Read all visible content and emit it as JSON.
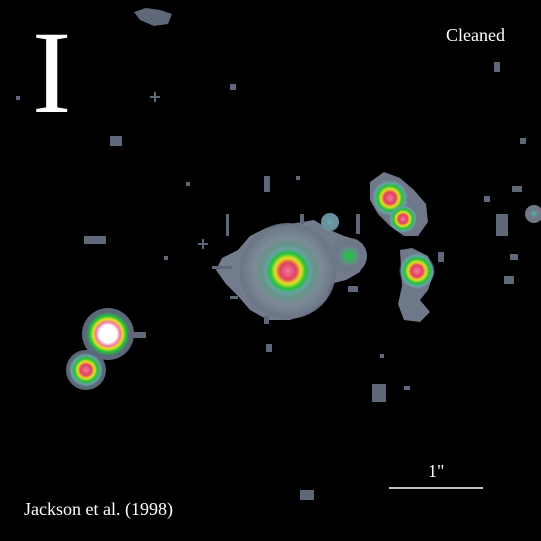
{
  "figure": {
    "band": "I",
    "status": "Cleaned",
    "scale_bar_label": "1\"",
    "credit": "Jackson et al. (1998)"
  },
  "colors": {
    "background": "#000000",
    "noise": "#5f6878",
    "halo": "#7c8a96",
    "green": "#22c23a",
    "yellow": "#e8e020",
    "red": "#e04060",
    "core": "#f07aa0",
    "white": "#ffffff"
  }
}
